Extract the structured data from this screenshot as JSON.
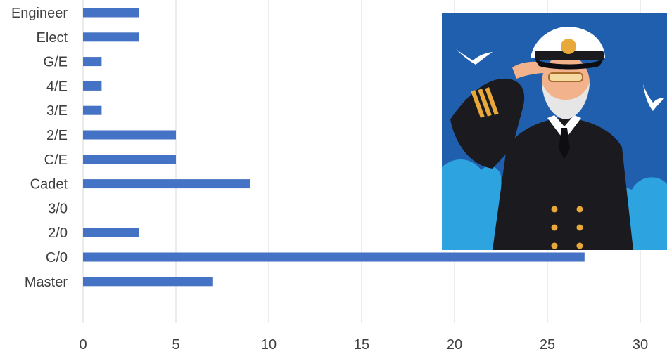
{
  "chart_data": {
    "type": "bar",
    "orientation": "horizontal",
    "categories": [
      "Engineer",
      "Elect",
      "G/E",
      "4/E",
      "3/E",
      "2/E",
      "C/E",
      "Cadet",
      "3/0",
      "2/0",
      "C/0",
      "Master"
    ],
    "values": [
      3,
      3,
      1,
      1,
      1,
      5,
      5,
      9,
      0,
      3,
      27,
      7
    ],
    "xlim": [
      0,
      30
    ],
    "xticks": [
      "0",
      "5",
      "10",
      "15",
      "20",
      "25",
      "30"
    ],
    "grid": true,
    "bar_color": "#4472c4",
    "title": "",
    "xlabel": "",
    "ylabel": ""
  },
  "illustration": {
    "subject": "saluting-ship-captain",
    "colors": {
      "sky": "#1f5fae",
      "cloud": "#2da3e0",
      "uniform": "#1b1b1f",
      "cap": "#ffffff",
      "gold": "#e8a93a",
      "skin": "#f2b28c",
      "beard": "#e6e6e6"
    }
  }
}
